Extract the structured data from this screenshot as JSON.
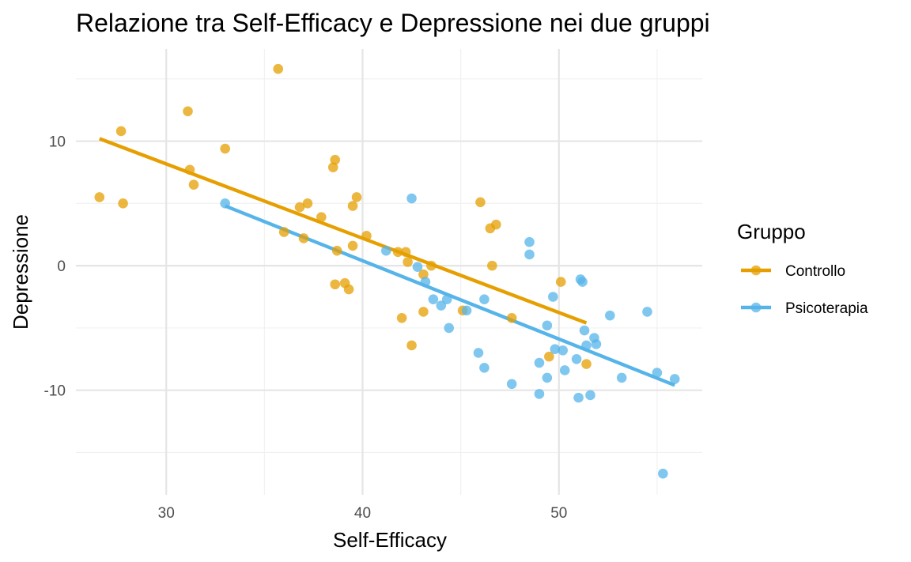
{
  "chart_data": {
    "type": "scatter",
    "title": "Relazione tra Self-Efficacy e Depressione nei due gruppi",
    "xlabel": "Self-Efficacy",
    "ylabel": "Depressione",
    "xlim": [
      25.4,
      57.3
    ],
    "ylim": [
      -18.4,
      17.4
    ],
    "xticks": [
      30,
      40,
      50
    ],
    "xtick_labels": [
      "30",
      "40",
      "50"
    ],
    "yticks": [
      -10,
      0,
      10
    ],
    "ytick_labels": [
      "-10",
      "0",
      "10"
    ],
    "grid": true,
    "legend": {
      "title": "Gruppo",
      "placement": "right"
    },
    "series": [
      {
        "name": "Controllo",
        "color": "#E69F00",
        "points": [
          [
            35.7,
            15.8
          ],
          [
            31.1,
            12.4
          ],
          [
            27.7,
            10.8
          ],
          [
            33.0,
            9.4
          ],
          [
            31.2,
            7.7
          ],
          [
            31.4,
            6.5
          ],
          [
            26.6,
            5.5
          ],
          [
            27.8,
            5.0
          ],
          [
            38.6,
            8.5
          ],
          [
            38.5,
            7.9
          ],
          [
            39.7,
            5.5
          ],
          [
            39.5,
            4.8
          ],
          [
            37.2,
            5.0
          ],
          [
            36.8,
            4.7
          ],
          [
            37.9,
            3.9
          ],
          [
            36.0,
            2.7
          ],
          [
            37.0,
            2.2
          ],
          [
            38.7,
            1.2
          ],
          [
            40.2,
            2.4
          ],
          [
            39.5,
            1.6
          ],
          [
            41.8,
            1.1
          ],
          [
            42.2,
            1.1
          ],
          [
            42.3,
            0.3
          ],
          [
            43.5,
            0.0
          ],
          [
            43.1,
            -0.7
          ],
          [
            38.6,
            -1.5
          ],
          [
            39.1,
            -1.4
          ],
          [
            39.3,
            -1.9
          ],
          [
            46.0,
            5.1
          ],
          [
            46.8,
            3.3
          ],
          [
            46.5,
            3.0
          ],
          [
            46.6,
            0.0
          ],
          [
            50.1,
            -1.3
          ],
          [
            45.1,
            -3.6
          ],
          [
            43.1,
            -3.7
          ],
          [
            42.0,
            -4.2
          ],
          [
            47.6,
            -4.2
          ],
          [
            42.5,
            -6.4
          ],
          [
            49.5,
            -7.3
          ],
          [
            51.4,
            -7.9
          ]
        ],
        "fit_line": [
          [
            26.6,
            10.2
          ],
          [
            51.4,
            -4.6
          ]
        ]
      },
      {
        "name": "Psicoterapia",
        "color": "#56B4E9",
        "points": [
          [
            33.0,
            5.0
          ],
          [
            42.5,
            5.4
          ],
          [
            48.5,
            1.9
          ],
          [
            48.5,
            0.9
          ],
          [
            41.2,
            1.2
          ],
          [
            42.8,
            -0.1
          ],
          [
            43.2,
            -1.3
          ],
          [
            43.6,
            -2.7
          ],
          [
            44.0,
            -3.2
          ],
          [
            44.3,
            -2.7
          ],
          [
            45.3,
            -3.6
          ],
          [
            44.4,
            -5.0
          ],
          [
            46.2,
            -2.7
          ],
          [
            45.9,
            -7.0
          ],
          [
            46.2,
            -8.2
          ],
          [
            47.6,
            -9.5
          ],
          [
            49.0,
            -10.3
          ],
          [
            49.0,
            -7.8
          ],
          [
            49.4,
            -9.0
          ],
          [
            49.4,
            -4.8
          ],
          [
            49.7,
            -2.5
          ],
          [
            49.8,
            -6.7
          ],
          [
            50.2,
            -6.8
          ],
          [
            50.3,
            -8.4
          ],
          [
            50.9,
            -7.5
          ],
          [
            51.1,
            -1.1
          ],
          [
            51.2,
            -1.3
          ],
          [
            51.3,
            -5.2
          ],
          [
            51.4,
            -6.4
          ],
          [
            51.8,
            -5.8
          ],
          [
            51.9,
            -6.3
          ],
          [
            51.6,
            -10.4
          ],
          [
            51.0,
            -10.6
          ],
          [
            52.6,
            -4.0
          ],
          [
            53.2,
            -9.0
          ],
          [
            54.5,
            -3.7
          ],
          [
            55.0,
            -8.6
          ],
          [
            55.9,
            -9.1
          ],
          [
            55.3,
            -16.7
          ]
        ],
        "fit_line": [
          [
            33.0,
            4.8
          ],
          [
            55.9,
            -9.6
          ]
        ]
      }
    ]
  }
}
